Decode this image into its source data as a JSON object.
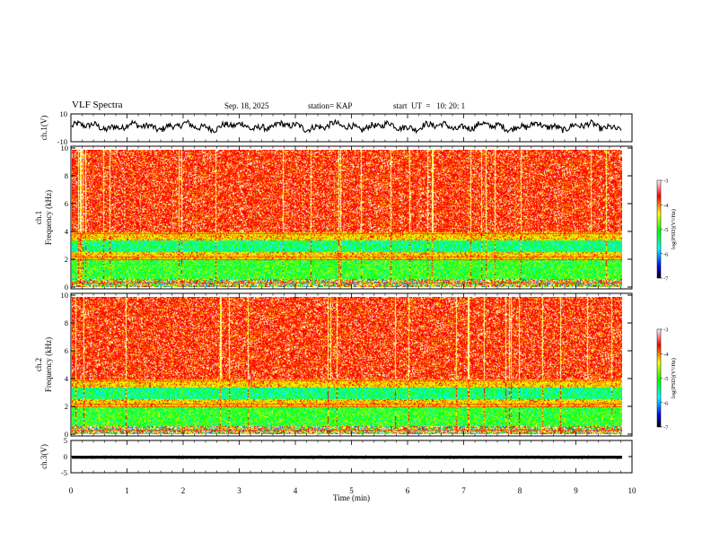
{
  "header": {
    "title": "VLF Spectra",
    "date": "Sep. 18, 2025",
    "station": "station= KAP",
    "start": "start  UT  =   10: 20: 1"
  },
  "colorbar": {
    "ticks": [
      "-3",
      "-4",
      "-5",
      "-6",
      "-7"
    ],
    "label": "log(PSD)(V²/Hz)",
    "stops": [
      "#000000",
      "#0000ff",
      "#00ffff",
      "#00ff00",
      "#ffff00",
      "#ff0000",
      "#ffffff"
    ]
  },
  "chart_data": [
    {
      "type": "line",
      "id": "ch1-waveform",
      "ylabel": "ch.1(V)",
      "ylim": [
        -10,
        10
      ],
      "yticks": [
        "10",
        "-10"
      ],
      "xlim": [
        0,
        10
      ],
      "series_note": "noisy signal roughly between -3 and +5 V"
    },
    {
      "type": "heatmap",
      "id": "ch1-spectrogram",
      "ylabel": "ch.1 Frequency (kHz)",
      "ylim": [
        0,
        10
      ],
      "yticks": [
        "0",
        "2",
        "4",
        "6",
        "8",
        "10"
      ],
      "xlim": [
        0,
        9.8
      ],
      "bands_khz": [
        {
          "from": 0.0,
          "to": 0.6,
          "level": "mixed"
        },
        {
          "from": 0.6,
          "to": 1.2,
          "level": "green"
        },
        {
          "from": 1.2,
          "to": 2.0,
          "level": "green"
        },
        {
          "from": 2.0,
          "to": 2.6,
          "level": "yellow"
        },
        {
          "from": 2.6,
          "to": 3.4,
          "level": "cyan-green"
        },
        {
          "from": 3.4,
          "to": 4.0,
          "level": "yellow"
        },
        {
          "from": 4.0,
          "to": 10.0,
          "level": "red"
        }
      ]
    },
    {
      "type": "heatmap",
      "id": "ch2-spectrogram",
      "ylabel": "ch.2 Frequency (kHz)",
      "ylim": [
        0,
        10
      ],
      "yticks": [
        "0",
        "2",
        "4",
        "6",
        "8",
        "10"
      ],
      "xlim": [
        0,
        9.8
      ],
      "bands_khz": [
        {
          "from": 0.0,
          "to": 0.6,
          "level": "mixed"
        },
        {
          "from": 0.6,
          "to": 1.2,
          "level": "green"
        },
        {
          "from": 1.2,
          "to": 2.0,
          "level": "green"
        },
        {
          "from": 2.0,
          "to": 2.6,
          "level": "yellow"
        },
        {
          "from": 2.6,
          "to": 3.4,
          "level": "cyan-green"
        },
        {
          "from": 3.4,
          "to": 4.0,
          "level": "yellow"
        },
        {
          "from": 4.0,
          "to": 10.0,
          "level": "red"
        }
      ]
    },
    {
      "type": "line",
      "id": "ch3-waveform",
      "ylabel": "ch.3(V)",
      "ylim": [
        -5,
        5
      ],
      "yticks": [
        "5",
        "0",
        "-5"
      ],
      "xlim": [
        0,
        10
      ],
      "series_note": "thick near-constant trace at about -0.2 V"
    }
  ],
  "xaxis": {
    "label": "Time (min)",
    "ticks": [
      "0",
      "1",
      "2",
      "3",
      "4",
      "5",
      "6",
      "7",
      "8",
      "9",
      "10"
    ],
    "range": [
      0,
      10
    ]
  }
}
